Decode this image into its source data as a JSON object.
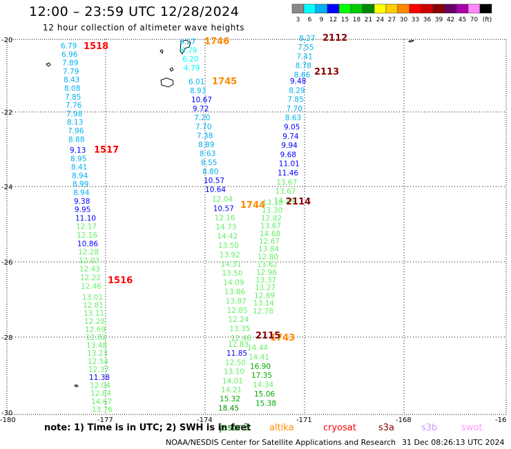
{
  "header": {
    "title": "12:00 – 23:59 UTC 12/28/2024",
    "subtitle": "12 hour collection of altimeter wave heights"
  },
  "color_scale": {
    "colors": [
      "#888888",
      "#00ffff",
      "#00b0f0",
      "#0000ff",
      "#00ff00",
      "#00cc00",
      "#008800",
      "#ffff00",
      "#ffcc00",
      "#ff8800",
      "#ff0000",
      "#cc0000",
      "#880000",
      "#660066",
      "#aa00aa",
      "#ff88ff",
      "#000000"
    ],
    "labels": [
      "3",
      "6",
      "9",
      "12",
      "15",
      "18",
      "21",
      "24",
      "27",
      "30",
      "33",
      "36",
      "39",
      "42",
      "45",
      "70",
      "(ft)"
    ]
  },
  "axes": {
    "lat_labels": [
      "-20",
      "-22",
      "-24",
      "-26",
      "-28",
      "-30"
    ],
    "lon_labels": [
      "-180",
      "-177",
      "-174",
      "-171",
      "-168",
      "-16"
    ]
  },
  "tracks": [
    {
      "label": "1518",
      "label_color": "#ff0000",
      "points": [
        {
          "v": "6.79",
          "c": "#00b0f0"
        },
        {
          "v": "6.96",
          "c": "#00b0f0"
        },
        {
          "v": "7.89",
          "c": "#00b0f0"
        },
        {
          "v": "7.79",
          "c": "#00b0f0"
        },
        {
          "v": "8.43",
          "c": "#00b0f0"
        },
        {
          "v": "8.08",
          "c": "#00b0f0"
        },
        {
          "v": "7.85",
          "c": "#00b0f0"
        },
        {
          "v": "7.76",
          "c": "#00b0f0"
        },
        {
          "v": "7.98",
          "c": "#00b0f0"
        },
        {
          "v": "8.13",
          "c": "#00b0f0"
        },
        {
          "v": "7.96",
          "c": "#00b0f0"
        },
        {
          "v": "8.88",
          "c": "#00b0f0"
        }
      ]
    },
    {
      "label": "1517",
      "label_color": "#ff0000",
      "points": [
        {
          "v": "9.13",
          "c": "#0000ff"
        },
        {
          "v": "8.95",
          "c": "#00b0f0"
        },
        {
          "v": "8.41",
          "c": "#00b0f0"
        },
        {
          "v": "8.94",
          "c": "#00b0f0"
        },
        {
          "v": "8.99",
          "c": "#00b0f0"
        },
        {
          "v": "8.94",
          "c": "#00b0f0"
        },
        {
          "v": "9.38",
          "c": "#0000ff"
        },
        {
          "v": "9.95",
          "c": "#0000ff"
        },
        {
          "v": "11.10",
          "c": "#0000ff"
        },
        {
          "v": "12.17",
          "c": "#66ee66"
        },
        {
          "v": "12.16",
          "c": "#66ee66"
        },
        {
          "v": "10.86",
          "c": "#0000ff"
        },
        {
          "v": "12.28",
          "c": "#66ee66"
        },
        {
          "v": "12.03",
          "c": "#66ee66"
        },
        {
          "v": "12.43",
          "c": "#66ee66"
        },
        {
          "v": "12.22",
          "c": "#66ee66"
        },
        {
          "v": "12.46",
          "c": "#66ee66"
        }
      ]
    },
    {
      "label": "1516",
      "label_color": "#ff0000",
      "points": [
        {
          "v": "13.01",
          "c": "#66ee66"
        },
        {
          "v": "12.81",
          "c": "#66ee66"
        },
        {
          "v": "13.11",
          "c": "#66ee66"
        },
        {
          "v": "12.28",
          "c": "#66ee66"
        },
        {
          "v": "12.69",
          "c": "#66ee66"
        },
        {
          "v": "12.82",
          "c": "#66ee66"
        },
        {
          "v": "13.48",
          "c": "#66ee66"
        },
        {
          "v": "13.23",
          "c": "#66ee66"
        },
        {
          "v": "12.54",
          "c": "#66ee66"
        },
        {
          "v": "12.37",
          "c": "#66ee66"
        },
        {
          "v": "11.38",
          "c": "#0000ff"
        },
        {
          "v": "12.04",
          "c": "#66ee66"
        },
        {
          "v": "12.84",
          "c": "#66ee66"
        },
        {
          "v": "14.67",
          "c": "#66ee66"
        },
        {
          "v": "13.76",
          "c": "#66ee66"
        }
      ]
    },
    {
      "label": "1746",
      "label_color": "#ff8800",
      "points": [
        {
          "v": "6.27",
          "c": "#00b0f0"
        },
        {
          "v": "6.79",
          "c": "#00ffff"
        },
        {
          "v": "6.20",
          "c": "#00ffff"
        },
        {
          "v": "4.79",
          "c": "#00ffff"
        }
      ]
    },
    {
      "label": "1745",
      "label_color": "#ff8800",
      "points": [
        {
          "v": "6.01",
          "c": "#00b0f0"
        },
        {
          "v": "8.93",
          "c": "#00b0f0"
        },
        {
          "v": "10.67",
          "c": "#0000ff"
        },
        {
          "v": "9.72",
          "c": "#0000ff"
        },
        {
          "v": "7.20",
          "c": "#00b0f0"
        },
        {
          "v": "7.70",
          "c": "#00b0f0"
        },
        {
          "v": "7.38",
          "c": "#00b0f0"
        },
        {
          "v": "8.89",
          "c": "#00b0f0"
        },
        {
          "v": "8.63",
          "c": "#00b0f0"
        },
        {
          "v": "8.55",
          "c": "#00b0f0"
        },
        {
          "v": "8.80",
          "c": "#00b0f0"
        },
        {
          "v": "10.57",
          "c": "#0000ff"
        },
        {
          "v": "10.64",
          "c": "#0000ff"
        }
      ]
    },
    {
      "label": "1744",
      "label_color": "#ff8800",
      "points": [
        {
          "v": "12.04",
          "c": "#66ee66"
        },
        {
          "v": "10.57",
          "c": "#0000ff"
        },
        {
          "v": "12.16",
          "c": "#66ee66"
        },
        {
          "v": "14.73",
          "c": "#66ee66"
        },
        {
          "v": "14.42",
          "c": "#66ee66"
        },
        {
          "v": "13.50",
          "c": "#66ee66"
        },
        {
          "v": "13.92",
          "c": "#66ee66"
        },
        {
          "v": "14.31",
          "c": "#66ee66"
        },
        {
          "v": "13.50",
          "c": "#66ee66"
        },
        {
          "v": "14.09",
          "c": "#66ee66"
        },
        {
          "v": "13.86",
          "c": "#66ee66"
        },
        {
          "v": "13.87",
          "c": "#66ee66"
        },
        {
          "v": "12.85",
          "c": "#66ee66"
        },
        {
          "v": "12.24",
          "c": "#66ee66"
        },
        {
          "v": "13.35",
          "c": "#66ee66"
        },
        {
          "v": "12.48",
          "c": "#66ee66"
        }
      ]
    },
    {
      "label": "1743",
      "label_color": "#ff8800",
      "points": [
        {
          "v": "12.83",
          "c": "#66ee66"
        },
        {
          "v": "11.85",
          "c": "#0000ff"
        },
        {
          "v": "12.50",
          "c": "#66ee66"
        },
        {
          "v": "13.10",
          "c": "#66ee66"
        },
        {
          "v": "14.01",
          "c": "#66ee66"
        },
        {
          "v": "14.21",
          "c": "#66ee66"
        },
        {
          "v": "15.32",
          "c": "#00aa00"
        },
        {
          "v": "18.45",
          "c": "#008800"
        }
      ]
    },
    {
      "label": "2112",
      "label_color": "#880000",
      "points": [
        {
          "v": "8.27",
          "c": "#00b0f0"
        },
        {
          "v": "7.55",
          "c": "#00b0f0"
        },
        {
          "v": "7.41",
          "c": "#00b0f0"
        },
        {
          "v": "8.78",
          "c": "#00b0f0"
        },
        {
          "v": "8.66",
          "c": "#00b0f0"
        }
      ]
    },
    {
      "label": "2113",
      "label_color": "#880000",
      "points": [
        {
          "v": "9.48",
          "c": "#0000ff"
        },
        {
          "v": "8.29",
          "c": "#00b0f0"
        },
        {
          "v": "7.85",
          "c": "#00b0f0"
        },
        {
          "v": "7.70",
          "c": "#00b0f0"
        },
        {
          "v": "8.63",
          "c": "#00b0f0"
        },
        {
          "v": "9.05",
          "c": "#0000ff"
        },
        {
          "v": "9.74",
          "c": "#0000ff"
        },
        {
          "v": "9.94",
          "c": "#0000ff"
        },
        {
          "v": "9.68",
          "c": "#0000ff"
        },
        {
          "v": "11.01",
          "c": "#0000ff"
        },
        {
          "v": "11.46",
          "c": "#0000ff"
        },
        {
          "v": "13.67",
          "c": "#66ee66"
        },
        {
          "v": "13.67",
          "c": "#66ee66"
        },
        {
          "v": "14.24",
          "c": "#66ee66"
        }
      ]
    },
    {
      "label": "2114",
      "label_color": "#880000",
      "points": [
        {
          "v": "13.18",
          "c": "#66ee66"
        },
        {
          "v": "13.30",
          "c": "#66ee66"
        },
        {
          "v": "12.82",
          "c": "#66ee66"
        },
        {
          "v": "13.67",
          "c": "#66ee66"
        },
        {
          "v": "14.68",
          "c": "#66ee66"
        },
        {
          "v": "12.67",
          "c": "#66ee66"
        },
        {
          "v": "13.84",
          "c": "#66ee66"
        },
        {
          "v": "12.80",
          "c": "#66ee66"
        },
        {
          "v": "13.62",
          "c": "#66ee66"
        },
        {
          "v": "12.96",
          "c": "#66ee66"
        },
        {
          "v": "13.37",
          "c": "#66ee66"
        },
        {
          "v": "13.27",
          "c": "#66ee66"
        },
        {
          "v": "12.89",
          "c": "#66ee66"
        },
        {
          "v": "13.14",
          "c": "#66ee66"
        },
        {
          "v": "12.78",
          "c": "#66ee66"
        }
      ]
    },
    {
      "label": "2115",
      "label_color": "#880000",
      "points": [
        {
          "v": "14.44",
          "c": "#66ee66"
        },
        {
          "v": "14.41",
          "c": "#66ee66"
        },
        {
          "v": "16.90",
          "c": "#00aa00"
        },
        {
          "v": "17.35",
          "c": "#00aa00"
        },
        {
          "v": "14.34",
          "c": "#66ee66"
        },
        {
          "v": "15.06",
          "c": "#00aa00"
        },
        {
          "v": "15.38",
          "c": "#00aa00"
        }
      ]
    }
  ],
  "footer": {
    "note": "note:  1) Time is in UTC; 2) SWH is in feet",
    "satellites": [
      {
        "name": "jason3",
        "color": "#006600"
      },
      {
        "name": "altika",
        "color": "#ff8800"
      },
      {
        "name": "cryosat",
        "color": "#ff0000"
      },
      {
        "name": "s3a",
        "color": "#880000"
      },
      {
        "name": "s3b",
        "color": "#cc99ff"
      },
      {
        "name": "swot",
        "color": "#ff99ff"
      }
    ],
    "credit": "NOAA/NESDIS Center for Satellite Applications and Research",
    "timestamp": "31 Dec 08:26:13 UTC 2024"
  }
}
